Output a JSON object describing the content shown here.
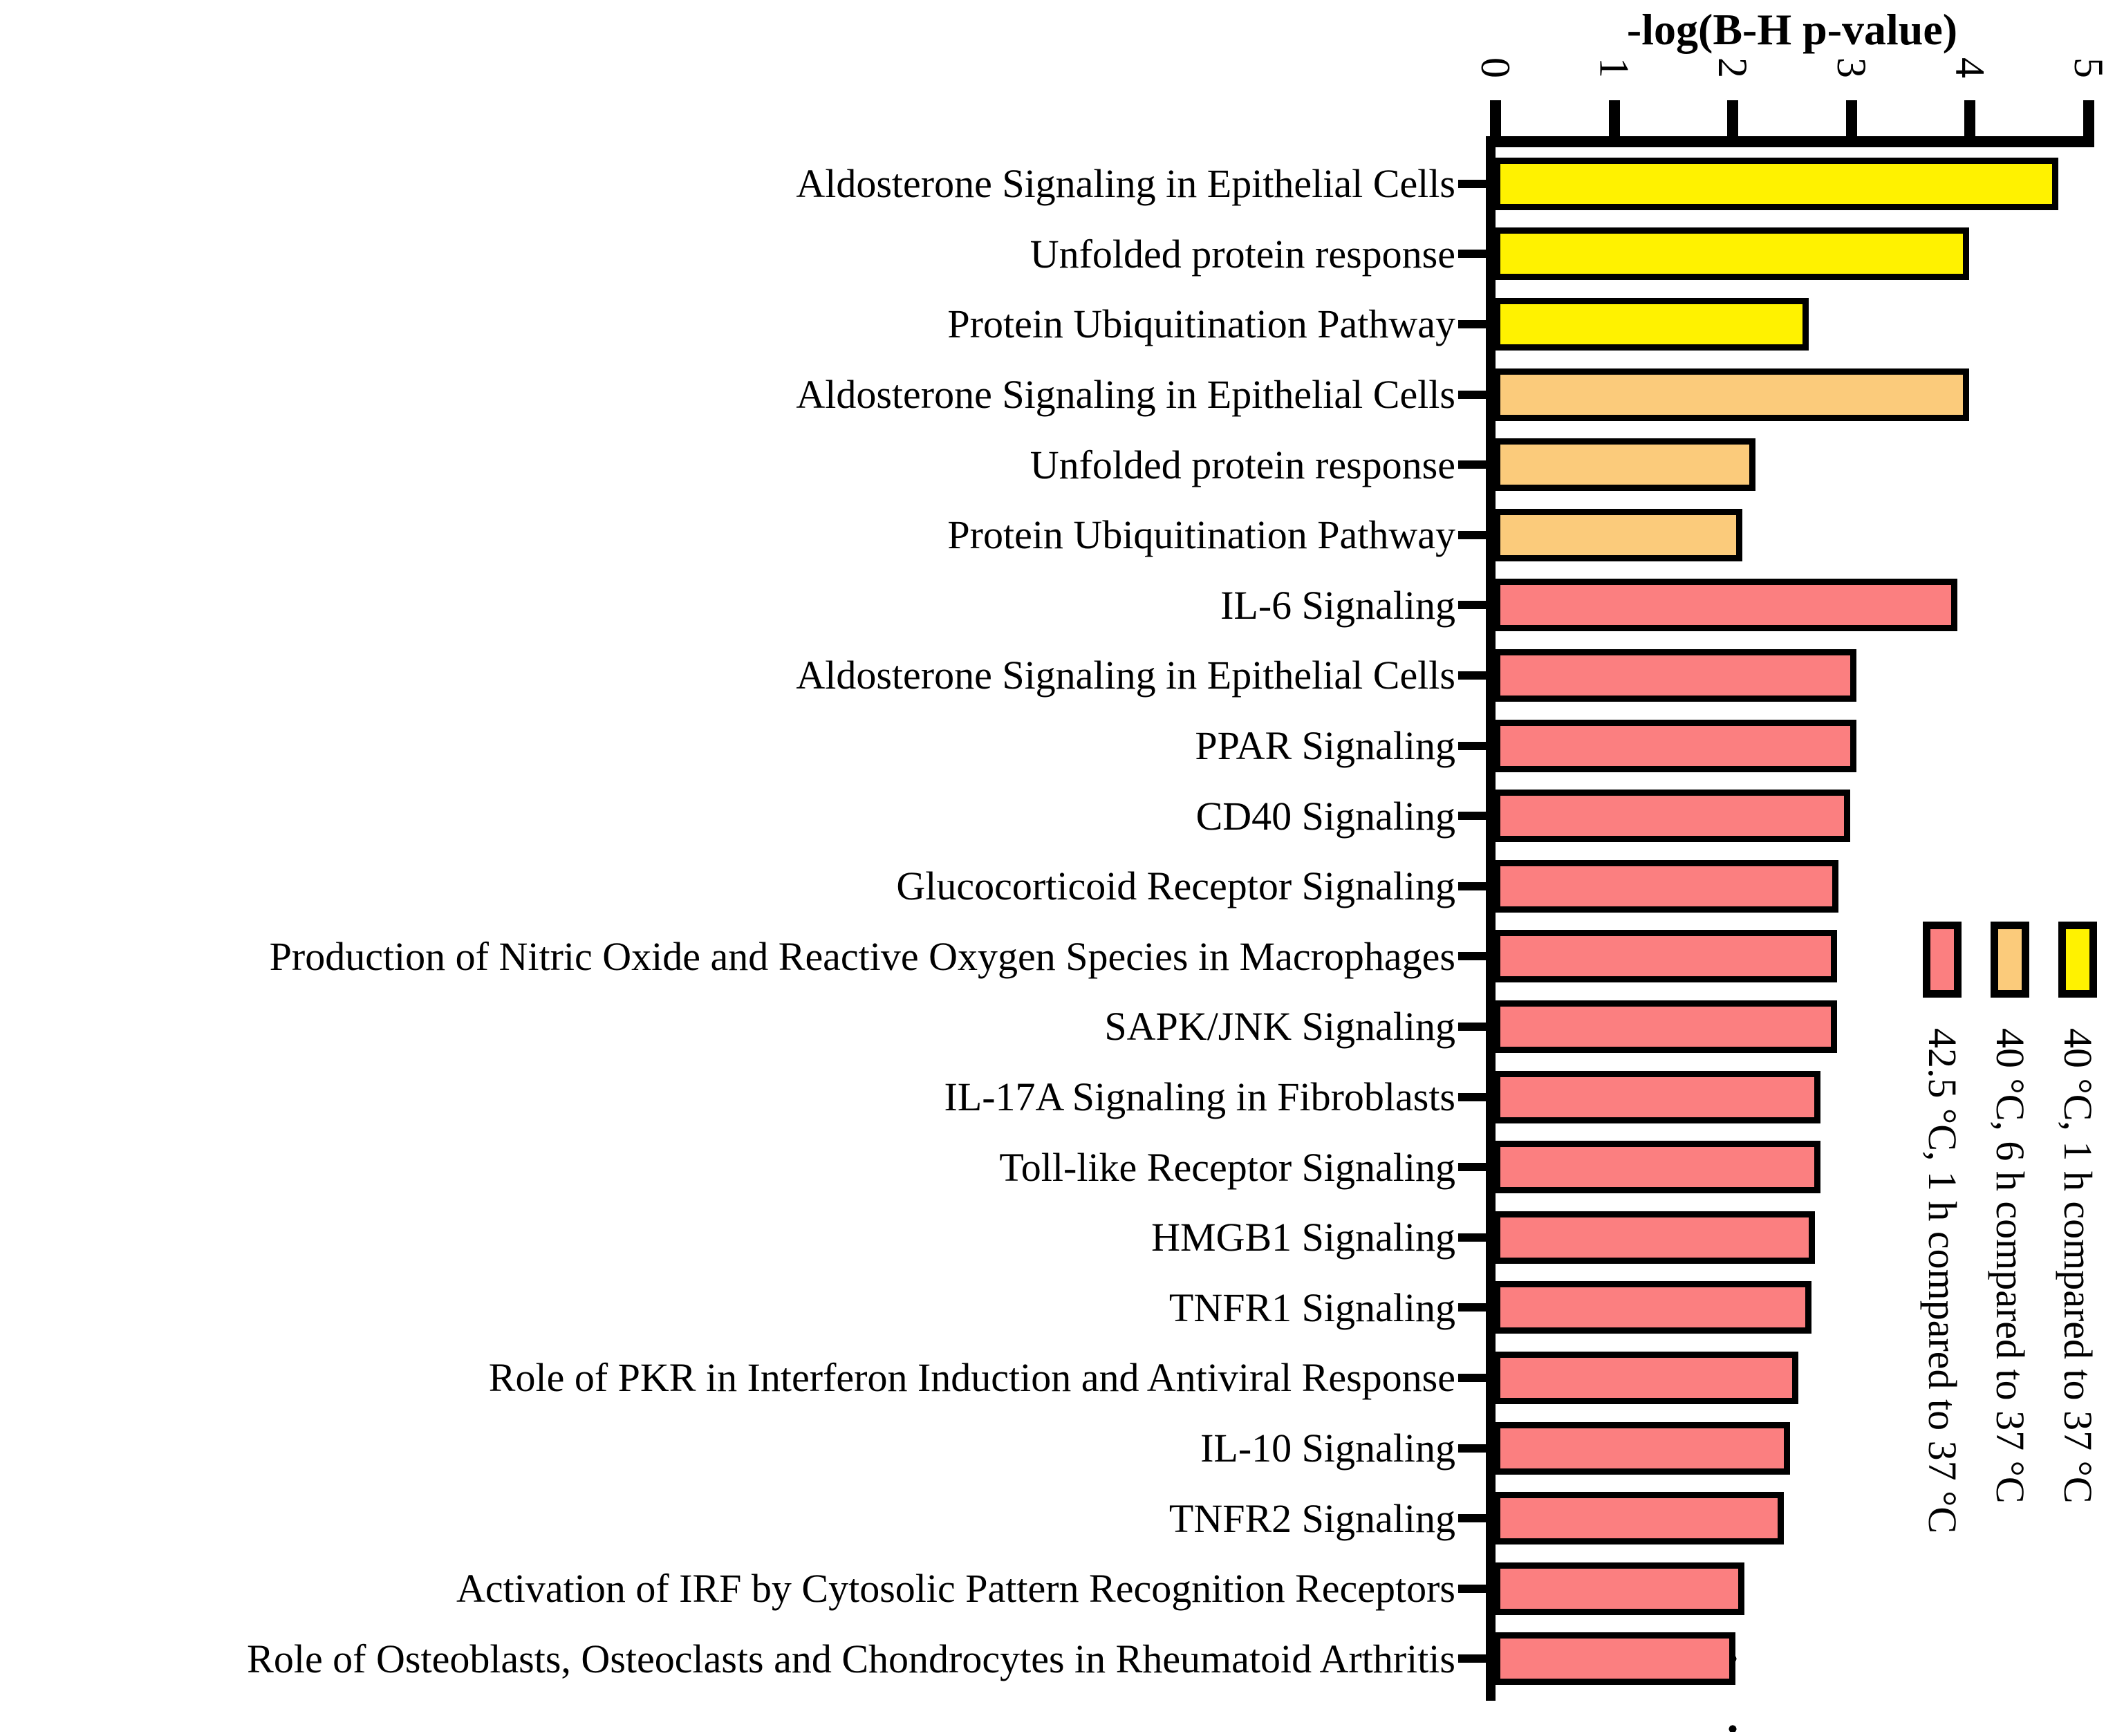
{
  "chart_data": {
    "type": "bar",
    "orientation": "horizontal",
    "title": "-log(B-H p-value)",
    "xlabel": "-log(B-H p-value)",
    "xlim": [
      0,
      5
    ],
    "xticks": [
      "0",
      "1",
      "2",
      "3",
      "4",
      "5"
    ],
    "reference_line_x": 2,
    "grid": "off",
    "legend_position": "right-vertical",
    "legend": [
      {
        "label": "42.5 °C, 1 h compared to 37 °C",
        "color": "#FB7F80"
      },
      {
        "label": "40 °C, 6 h compared to 37 °C",
        "color": "#FBCB7B"
      },
      {
        "label": "40 °C, 1 h compared to 37 °C",
        "color": "#FFF200"
      }
    ],
    "bars": [
      {
        "label": "Aldosterone Signaling in Epithelial Cells",
        "series": "40 °C, 1 h compared to 37 °C",
        "value": 4.7
      },
      {
        "label": "Unfolded protein response",
        "series": "40 °C, 1 h compared to 37 °C",
        "value": 3.95
      },
      {
        "label": "Protein Ubiquitination Pathway",
        "series": "40 °C, 1 h compared to 37 °C",
        "value": 2.6
      },
      {
        "label": "Aldosterone Signaling in Epithelial Cells",
        "series": "40 °C, 6 h compared to 37 °C",
        "value": 3.95
      },
      {
        "label": "Unfolded protein response",
        "series": "40 °C, 6 h compared to 37 °C",
        "value": 2.15
      },
      {
        "label": "Protein Ubiquitination Pathway",
        "series": "40 °C, 6 h compared to 37 °C",
        "value": 2.04
      },
      {
        "label": "IL-6 Signaling",
        "series": "42.5 °C, 1 h compared to 37 °C",
        "value": 3.85
      },
      {
        "label": "Aldosterone Signaling in Epithelial Cells",
        "series": "42.5 °C, 1 h compared to 37 °C",
        "value": 3.0
      },
      {
        "label": "PPAR Signaling",
        "series": "42.5 °C, 1 h compared to 37 °C",
        "value": 3.0
      },
      {
        "label": "CD40 Signaling",
        "series": "42.5 °C, 1 h compared to 37 °C",
        "value": 2.95
      },
      {
        "label": "Glucocorticoid Receptor Signaling",
        "series": "42.5 °C, 1 h compared to 37 °C",
        "value": 2.85
      },
      {
        "label": "Production of Nitric Oxide and Reactive Oxygen Species in Macrophages",
        "series": "42.5 °C, 1 h compared to 37 °C",
        "value": 2.84
      },
      {
        "label": "SAPK/JNK Signaling",
        "series": "42.5 °C, 1 h compared to 37 °C",
        "value": 2.84
      },
      {
        "label": "IL-17A Signaling in Fibroblasts",
        "series": "42.5 °C, 1 h compared to 37 °C",
        "value": 2.7
      },
      {
        "label": "Toll-like Receptor Signaling",
        "series": "42.5 °C, 1 h compared to 37 °C",
        "value": 2.7
      },
      {
        "label": "HMGB1 Signaling",
        "series": "42.5 °C, 1 h compared to 37 °C",
        "value": 2.65
      },
      {
        "label": "TNFR1 Signaling",
        "series": "42.5 °C, 1 h compared to 37 °C",
        "value": 2.62
      },
      {
        "label": "Role of PKR in Interferon Induction and Antiviral Response",
        "series": "42.5 °C, 1 h compared to 37 °C",
        "value": 2.51
      },
      {
        "label": "IL-10 Signaling",
        "series": "42.5 °C, 1 h compared to 37 °C",
        "value": 2.44
      },
      {
        "label": "TNFR2 Signaling",
        "series": "42.5 °C, 1 h compared to 37 °C",
        "value": 2.39
      },
      {
        "label": "Activation of IRF by Cytosolic Pattern Recognition Receptors",
        "series": "42.5 °C, 1 h compared to 37 °C",
        "value": 2.06
      },
      {
        "label": "Role of Osteoblasts, Osteoclasts and Chondrocytes in Rheumatoid Arthritis",
        "series": "42.5 °C, 1 h compared to 37 °C",
        "value": 1.98
      }
    ],
    "colors": {
      "axis": "#000000",
      "background": "#ffffff"
    }
  }
}
